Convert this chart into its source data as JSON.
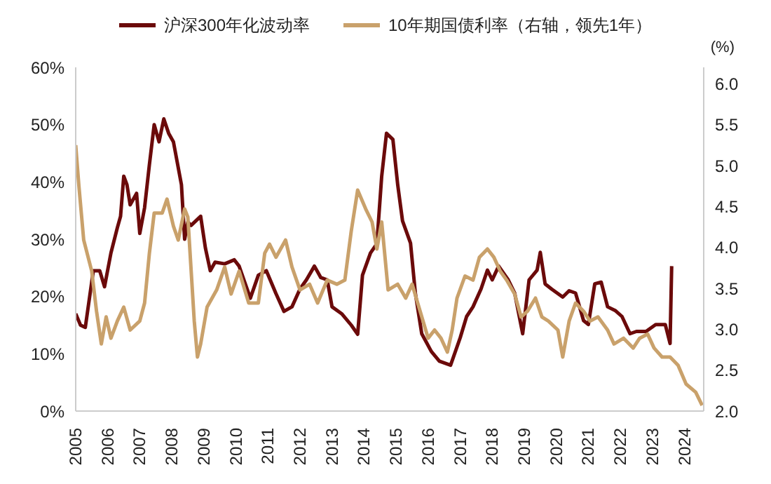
{
  "chart_data": {
    "type": "line",
    "y2label": "(%)",
    "legend": "top",
    "grid": false,
    "marker": "none",
    "line_style": "solid",
    "xlim": [
      2005,
      2024.6
    ],
    "xticks": [
      2005,
      2006,
      2007,
      2008,
      2009,
      2010,
      2011,
      2012,
      2013,
      2014,
      2015,
      2016,
      2017,
      2018,
      2019,
      2020,
      2021,
      2022,
      2023,
      2024
    ],
    "ylim": [
      0,
      60
    ],
    "yticks": [
      {
        "value": 0,
        "label": "0%"
      },
      {
        "value": 10,
        "label": "10%"
      },
      {
        "value": 20,
        "label": "20%"
      },
      {
        "value": 30,
        "label": "30%"
      },
      {
        "value": 40,
        "label": "40%"
      },
      {
        "value": 50,
        "label": "50%"
      },
      {
        "value": 60,
        "label": "60%"
      }
    ],
    "y2lim": [
      2,
      6.2
    ],
    "y2ticks": [
      {
        "value": 2,
        "label": "2.0"
      },
      {
        "value": 2.5,
        "label": "2.5"
      },
      {
        "value": 3,
        "label": "3.0"
      },
      {
        "value": 3.5,
        "label": "3.5"
      },
      {
        "value": 4,
        "label": "4.0"
      },
      {
        "value": 4.5,
        "label": "4.5"
      },
      {
        "value": 5,
        "label": "5.0"
      },
      {
        "value": 5.5,
        "label": "5.5"
      },
      {
        "value": 6,
        "label": "6.0"
      }
    ],
    "series": [
      {
        "name": "沪深300年化波动率",
        "color": "#6b0a0a",
        "x": [
          2005.0,
          2005.15,
          2005.3,
          2005.55,
          2005.75,
          2005.9,
          2006.1,
          2006.3,
          2006.4,
          2006.5,
          2006.6,
          2006.7,
          2006.9,
          2007.0,
          2007.15,
          2007.3,
          2007.45,
          2007.6,
          2007.75,
          2007.9,
          2008.05,
          2008.3,
          2008.4,
          2008.5,
          2008.6,
          2008.9,
          2009.05,
          2009.2,
          2009.35,
          2009.65,
          2009.95,
          2010.1,
          2010.25,
          2010.45,
          2010.7,
          2010.95,
          2011.25,
          2011.5,
          2011.75,
          2012.0,
          2012.2,
          2012.45,
          2012.65,
          2012.85,
          2013.0,
          2013.3,
          2013.6,
          2013.8,
          2013.95,
          2014.2,
          2014.4,
          2014.55,
          2014.7,
          2014.9,
          2015.05,
          2015.2,
          2015.45,
          2015.6,
          2015.8,
          2016.1,
          2016.35,
          2016.7,
          2017.0,
          2017.2,
          2017.4,
          2017.65,
          2017.85,
          2018.0,
          2018.2,
          2018.5,
          2018.7,
          2018.95,
          2019.15,
          2019.4,
          2019.5,
          2019.65,
          2019.85,
          2020.2,
          2020.4,
          2020.6,
          2020.85,
          2021.0,
          2021.2,
          2021.4,
          2021.6,
          2021.85,
          2022.05,
          2022.3,
          2022.5,
          2022.8,
          2023.1,
          2023.4,
          2023.55,
          2023.6
        ],
        "values": [
          17,
          15,
          14.6,
          24.5,
          24.5,
          21.7,
          27.6,
          32,
          34,
          41,
          39.5,
          36,
          38,
          31,
          35.5,
          43,
          50,
          47,
          51,
          48.5,
          47,
          39.5,
          30,
          33,
          32.4,
          34,
          28.4,
          24.5,
          26,
          25.7,
          26.4,
          25.3,
          22.9,
          19.7,
          23.7,
          24.5,
          20.5,
          17.4,
          18.2,
          21.3,
          22.9,
          25.3,
          23.3,
          22.9,
          18.2,
          17,
          15,
          13.4,
          23.7,
          27.6,
          29.2,
          41,
          48.5,
          47.4,
          39.5,
          33.2,
          29.3,
          20.6,
          13.5,
          10.4,
          8.7,
          8,
          12.8,
          16.5,
          18.2,
          21.3,
          24.6,
          22.9,
          25.3,
          22.9,
          20.6,
          13.5,
          22.9,
          24.6,
          27.7,
          22.2,
          21.3,
          19.9,
          21,
          20.6,
          15.8,
          15.1,
          22.2,
          22.5,
          18.2,
          17.5,
          16.5,
          13.5,
          13.9,
          13.9,
          15.1,
          15.1,
          11.8,
          25.3
        ]
      },
      {
        "name": "10年期国债利率（右轴，领先1年）",
        "color": "#c9a16b",
        "axis": "y2",
        "x": [
          2005.0,
          2005.1,
          2005.25,
          2005.5,
          2005.65,
          2005.8,
          2005.95,
          2006.1,
          2006.3,
          2006.5,
          2006.7,
          2007.0,
          2007.15,
          2007.3,
          2007.45,
          2007.7,
          2007.85,
          2008.05,
          2008.2,
          2008.4,
          2008.5,
          2008.7,
          2008.8,
          2008.9,
          2009.1,
          2009.4,
          2009.65,
          2009.85,
          2010.1,
          2010.4,
          2010.7,
          2010.9,
          2011.05,
          2011.25,
          2011.55,
          2011.75,
          2012.0,
          2012.3,
          2012.55,
          2012.85,
          2013.15,
          2013.4,
          2013.6,
          2013.8,
          2014.05,
          2014.25,
          2014.4,
          2014.55,
          2014.75,
          2015.05,
          2015.3,
          2015.5,
          2015.75,
          2016.0,
          2016.2,
          2016.4,
          2016.6,
          2016.75,
          2016.9,
          2017.15,
          2017.4,
          2017.6,
          2017.85,
          2018.05,
          2018.25,
          2018.45,
          2018.7,
          2018.9,
          2019.1,
          2019.35,
          2019.55,
          2019.75,
          2020.05,
          2020.2,
          2020.4,
          2020.6,
          2020.85,
          2021.05,
          2021.3,
          2021.6,
          2021.8,
          2022.1,
          2022.4,
          2022.6,
          2022.85,
          2023.05,
          2023.3,
          2023.55,
          2023.8,
          2024.05,
          2024.35,
          2024.55
        ],
        "values": [
          5.25,
          4.75,
          4.09,
          3.71,
          3.22,
          2.82,
          3.15,
          2.89,
          3.1,
          3.27,
          2.99,
          3.1,
          3.32,
          3.93,
          4.42,
          4.42,
          4.59,
          4.26,
          4.09,
          4.47,
          4.37,
          3.1,
          2.66,
          2.82,
          3.27,
          3.48,
          3.76,
          3.43,
          3.71,
          3.32,
          3.32,
          3.93,
          4.04,
          3.88,
          4.09,
          3.76,
          3.48,
          3.55,
          3.32,
          3.6,
          3.55,
          3.6,
          4.2,
          4.7,
          4.47,
          4.31,
          3.98,
          4.31,
          3.48,
          3.55,
          3.38,
          3.55,
          3.22,
          2.89,
          2.99,
          2.89,
          2.72,
          2.99,
          3.38,
          3.65,
          3.6,
          3.88,
          3.98,
          3.88,
          3.71,
          3.6,
          3.43,
          3.15,
          3.22,
          3.38,
          3.15,
          3.1,
          2.99,
          2.66,
          3.1,
          3.32,
          3.22,
          3.1,
          3.15,
          2.99,
          2.82,
          2.89,
          2.77,
          2.89,
          2.94,
          2.77,
          2.66,
          2.66,
          2.56,
          2.33,
          2.23,
          2.07
        ]
      }
    ]
  }
}
